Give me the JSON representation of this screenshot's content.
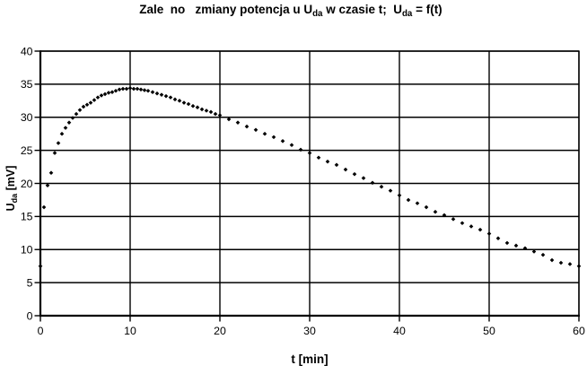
{
  "colors": {
    "background": "#ffffff",
    "marker": "#000000",
    "grid": "#000000",
    "axis": "#000000",
    "text": "#000000"
  },
  "chart_data": {
    "type": "scatter",
    "title": "Zale no   zmiany potencja u Uda w czasie t;  Uda = f(t)",
    "title_parts": {
      "p1": "Zale  no   zmiany potencja u U",
      "s1": "da",
      "p2": " w czasie t;  U",
      "s2": "da",
      "p3": " = f(t)"
    },
    "xlabel": "t [min]",
    "ylabel": "Uda [mV]",
    "ylabel_parts": {
      "p1": "U",
      "s1": "da",
      "p2": " [mV]"
    },
    "xlim": [
      0,
      60
    ],
    "ylim": [
      0,
      40
    ],
    "x_ticks": [
      0,
      10,
      20,
      30,
      40,
      50,
      60
    ],
    "y_ticks": [
      0,
      5,
      10,
      15,
      20,
      25,
      30,
      35,
      40
    ],
    "grid": true,
    "legend": false,
    "marker": "diamond",
    "points": [
      [
        0.0,
        7.5
      ],
      [
        0.4,
        16.4
      ],
      [
        0.8,
        19.7
      ],
      [
        1.2,
        21.6
      ],
      [
        1.6,
        24.6
      ],
      [
        2.0,
        26.1
      ],
      [
        2.4,
        27.5
      ],
      [
        2.8,
        28.4
      ],
      [
        3.2,
        29.2
      ],
      [
        3.6,
        29.9
      ],
      [
        4.0,
        30.5
      ],
      [
        4.4,
        31.1
      ],
      [
        4.8,
        31.6
      ],
      [
        5.2,
        31.9
      ],
      [
        5.6,
        32.2
      ],
      [
        6.0,
        32.6
      ],
      [
        6.4,
        33.0
      ],
      [
        6.8,
        33.3
      ],
      [
        7.2,
        33.5
      ],
      [
        7.6,
        33.7
      ],
      [
        8.0,
        33.8
      ],
      [
        8.4,
        34.0
      ],
      [
        8.8,
        34.2
      ],
      [
        9.2,
        34.3
      ],
      [
        9.6,
        34.3
      ],
      [
        10.0,
        34.4
      ],
      [
        10.4,
        34.3
      ],
      [
        10.8,
        34.3
      ],
      [
        11.2,
        34.2
      ],
      [
        11.6,
        34.1
      ],
      [
        12.0,
        34.0
      ],
      [
        12.5,
        33.8
      ],
      [
        13.0,
        33.6
      ],
      [
        13.5,
        33.4
      ],
      [
        14.0,
        33.2
      ],
      [
        14.5,
        33.0
      ],
      [
        15.0,
        32.7
      ],
      [
        15.5,
        32.5
      ],
      [
        16.0,
        32.2
      ],
      [
        16.5,
        32.0
      ],
      [
        17.0,
        31.7
      ],
      [
        17.5,
        31.5
      ],
      [
        18.0,
        31.2
      ],
      [
        18.5,
        31.0
      ],
      [
        19.0,
        30.8
      ],
      [
        19.5,
        30.5
      ],
      [
        20.0,
        30.3
      ],
      [
        21,
        29.7
      ],
      [
        22,
        29.2
      ],
      [
        23,
        28.6
      ],
      [
        24,
        28.1
      ],
      [
        25,
        27.5
      ],
      [
        26,
        27.0
      ],
      [
        27,
        26.4
      ],
      [
        28,
        25.8
      ],
      [
        29,
        25.1
      ],
      [
        30,
        24.6
      ],
      [
        31,
        23.9
      ],
      [
        32,
        23.3
      ],
      [
        33,
        22.8
      ],
      [
        34,
        22.1
      ],
      [
        35,
        21.4
      ],
      [
        36,
        20.8
      ],
      [
        37,
        20.1
      ],
      [
        38,
        19.5
      ],
      [
        39,
        18.9
      ],
      [
        40,
        18.2
      ],
      [
        41,
        17.5
      ],
      [
        42,
        17.0
      ],
      [
        43,
        16.4
      ],
      [
        44,
        15.7
      ],
      [
        45,
        15.2
      ],
      [
        46,
        14.6
      ],
      [
        47,
        14.0
      ],
      [
        48,
        13.5
      ],
      [
        49,
        13.0
      ],
      [
        50,
        12.4
      ],
      [
        51,
        11.7
      ],
      [
        52,
        11.0
      ],
      [
        53,
        10.6
      ],
      [
        54,
        10.2
      ],
      [
        55,
        9.7
      ],
      [
        56,
        9.2
      ],
      [
        57,
        8.4
      ],
      [
        58,
        8.0
      ],
      [
        59,
        7.8
      ],
      [
        60,
        7.5
      ]
    ]
  }
}
